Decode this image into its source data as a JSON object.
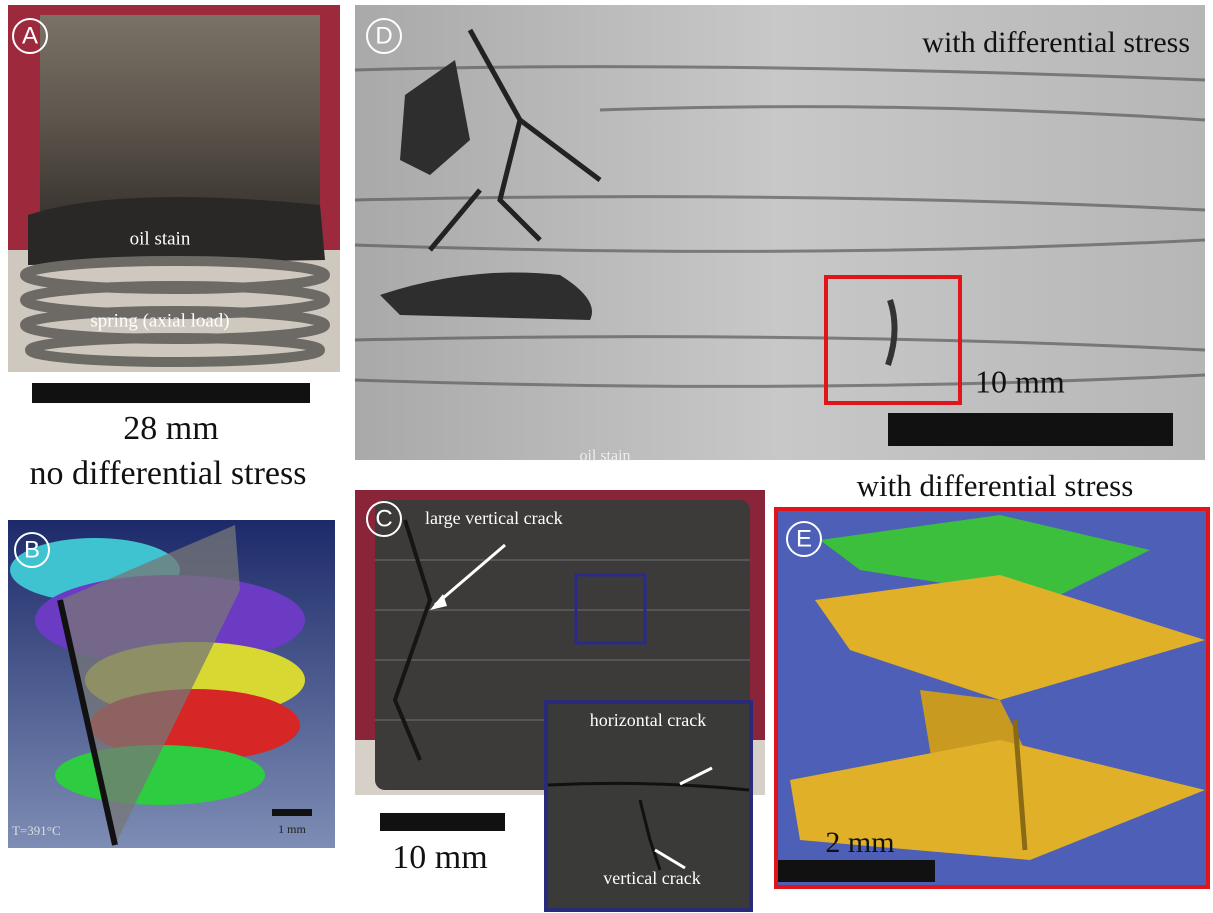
{
  "panels": {
    "A": {
      "label": "A",
      "texts": [
        "oil stain",
        "spring (axial load)"
      ],
      "scale": "28 mm",
      "caption": "no differential stress"
    },
    "B": {
      "label": "B",
      "temperature": "T=391°C",
      "scale": "1 mm"
    },
    "C": {
      "label": "C",
      "callouts": [
        "large vertical crack",
        "horizontal crack",
        "vertical crack"
      ],
      "scale": "10 mm"
    },
    "D": {
      "label": "D",
      "title": "with differential stress",
      "scale": "10 mm",
      "faint_text": "oil stain"
    },
    "E": {
      "label": "E",
      "caption": "with differential stress",
      "scale": "2 mm"
    }
  }
}
